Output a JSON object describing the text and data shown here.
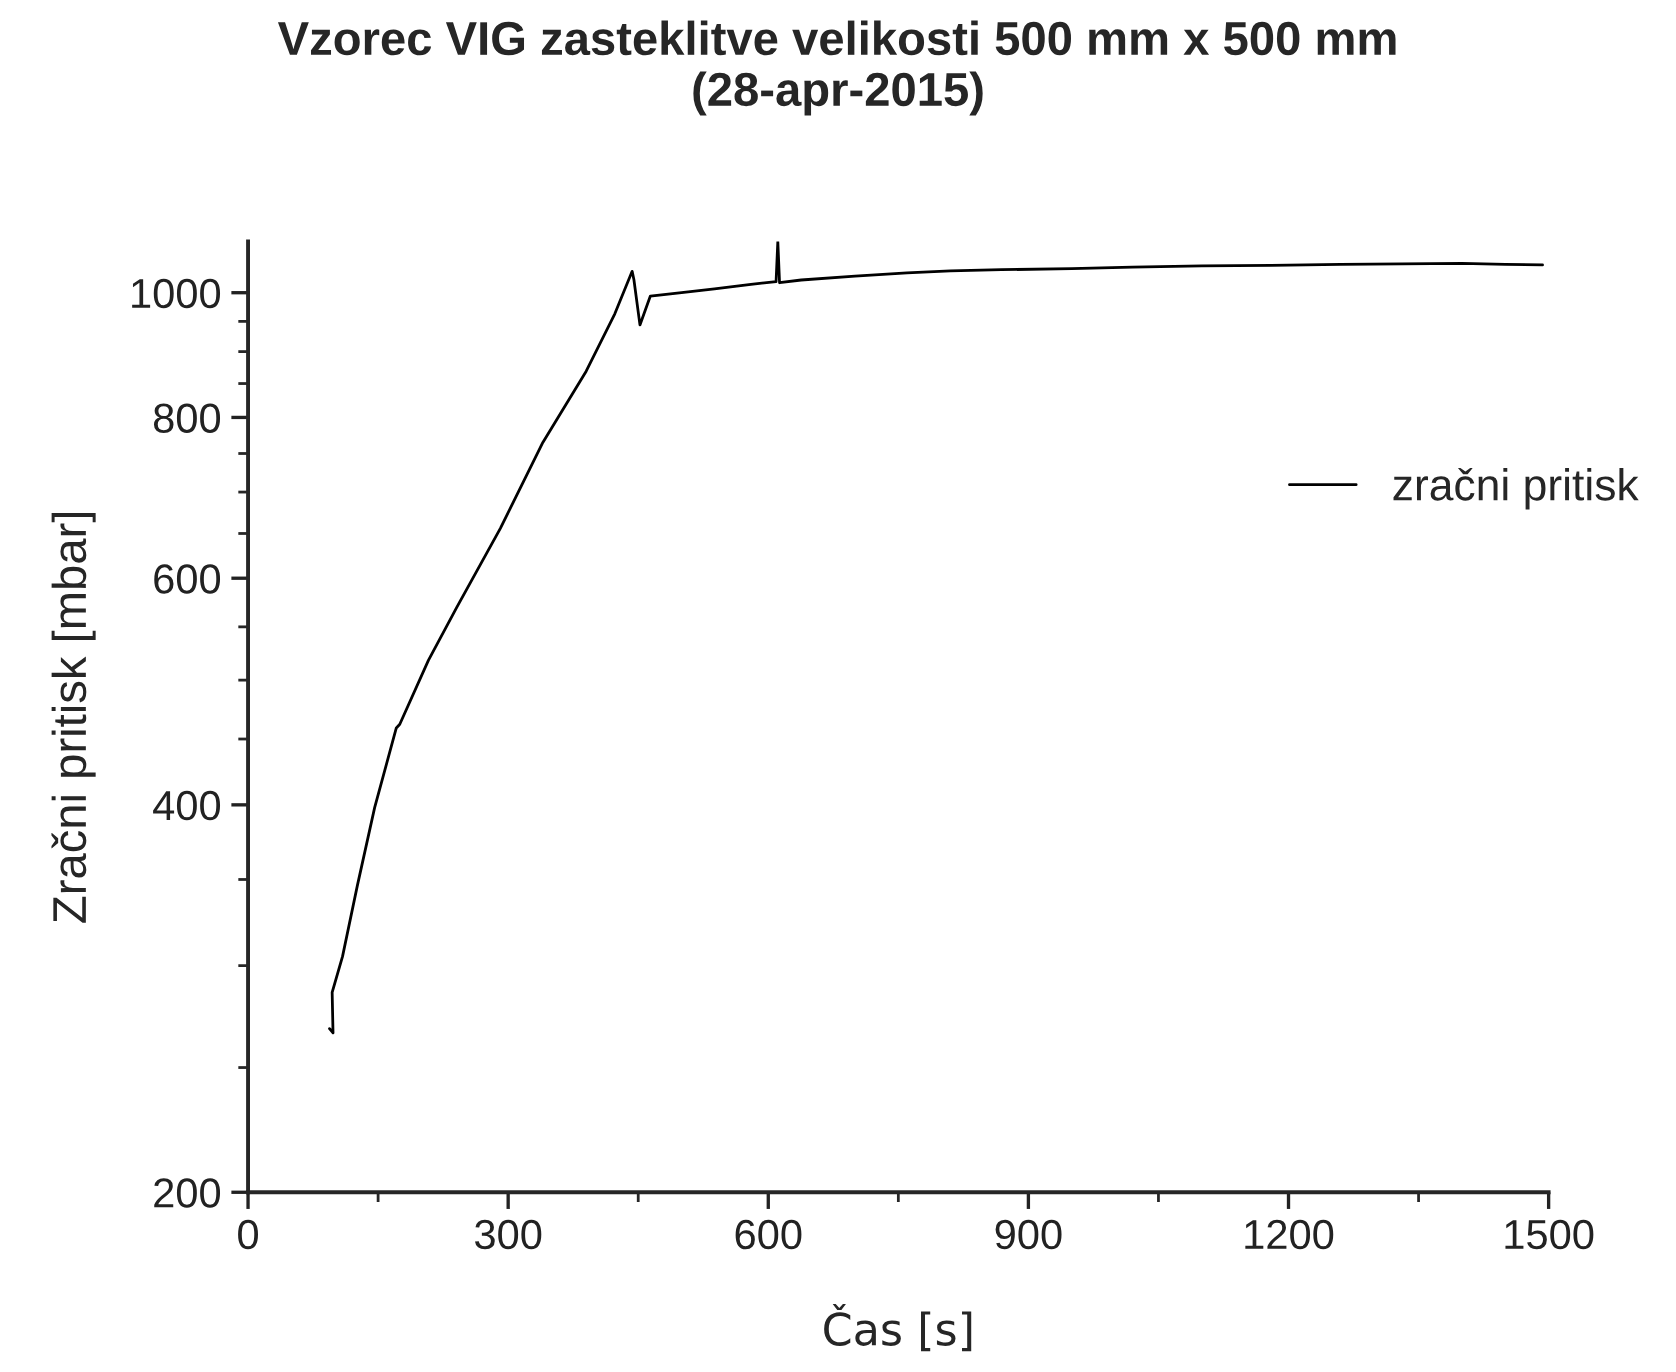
{
  "chart_data": {
    "type": "line",
    "title": "Vzorec VIG zasteklitve velikosti 500 mm x 500 mm\n(28-apr-2015)",
    "xlabel": "Čas [s]",
    "ylabel": "Zračni pritisk [mbar]",
    "series": [
      {
        "name": "zračni pritisk",
        "color": "#000000",
        "x": [
          94,
          98,
          97,
          109,
          126,
          146,
          171,
          175,
          208,
          241,
          291,
          340,
          390,
          423,
          443,
          445,
          452,
          464,
          500,
          538,
          580,
          609,
          611,
          613,
          638,
          700,
          760,
          810,
          869,
          950,
          1020,
          1100,
          1180,
          1260,
          1331,
          1400,
          1450,
          1493
        ],
        "values": [
          268,
          266,
          286,
          305,
          346,
          398,
          459,
          462,
          518,
          570,
          656,
          765,
          869,
          963,
          1039,
          1024,
          944,
          994,
          1000,
          1007,
          1015,
          1020,
          1096,
          1018,
          1023,
          1030,
          1036,
          1040,
          1042,
          1044,
          1047,
          1049,
          1050,
          1052,
          1053,
          1054,
          1052,
          1051
        ]
      }
    ],
    "xlim": [
      0,
      1500
    ],
    "xticks": [
      0,
      300,
      600,
      900,
      1200,
      1500
    ],
    "ylim": [
      200,
      1096
    ],
    "yticks": [
      200,
      400,
      600,
      800,
      1000
    ],
    "log": "y",
    "grid": false,
    "legend": "right",
    "marker": "none",
    "line_style": "solid"
  }
}
